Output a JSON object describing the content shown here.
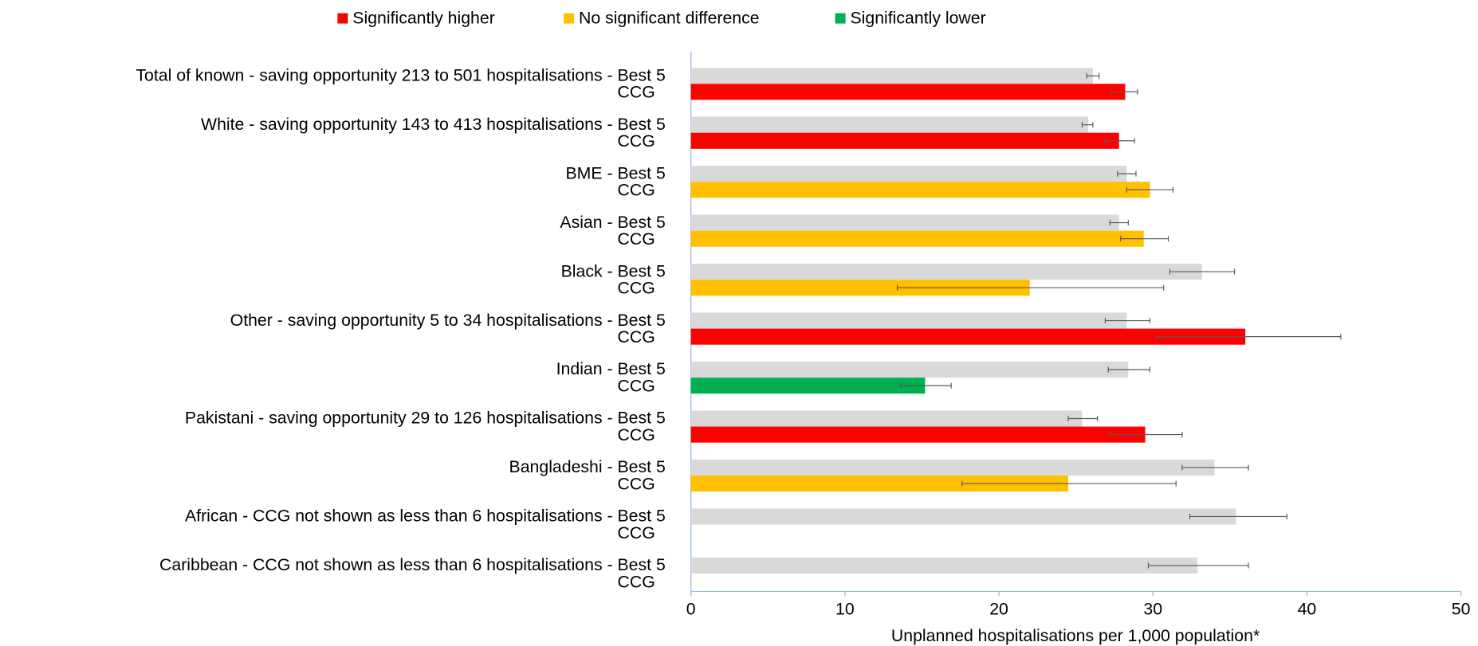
{
  "chart_data": {
    "type": "bar",
    "orientation": "horizontal",
    "legend": [
      {
        "name": "Significantly higher",
        "color": "#ff0000"
      },
      {
        "name": "No significant difference",
        "color": "#ffc000"
      },
      {
        "name": "Significantly lower",
        "color": "#00b050"
      }
    ],
    "categories": [
      "Total of known - saving opportunity 213 to 501 hospitalisations - Best 5",
      "White - saving opportunity 143 to 413 hospitalisations - Best 5",
      "BME - Best 5",
      "Asian - Best 5",
      "Black - Best 5",
      "Other - saving opportunity 5 to 34 hospitalisations - Best 5",
      "Indian - Best 5",
      "Pakistani - saving opportunity 29 to 126 hospitalisations - Best 5",
      "Bangladeshi - Best 5",
      "African - CCG not shown as less than 6 hospitalisations  - Best 5",
      "Caribbean - CCG not shown as less than 6 hospitalisations  - Best 5"
    ],
    "series": [
      {
        "color": "#d9d9d9",
        "values": [
          26.1,
          25.8,
          28.3,
          27.8,
          33.2,
          28.3,
          28.4,
          25.4,
          34.0,
          35.4,
          32.9
        ],
        "ci_low": [
          25.7,
          25.4,
          27.7,
          27.2,
          31.1,
          26.9,
          27.1,
          24.5,
          31.9,
          32.4,
          29.7
        ],
        "ci_high": [
          26.5,
          26.1,
          28.9,
          28.4,
          35.3,
          29.8,
          29.8,
          26.4,
          36.2,
          38.7,
          36.2
        ]
      },
      {
        "name": "CCG",
        "colors": [
          "#ff0000",
          "#ff0000",
          "#ffc000",
          "#ffc000",
          "#ffc000",
          "#ff0000",
          "#00b050",
          "#ff0000",
          "#ffc000",
          null,
          null
        ],
        "values": [
          28.2,
          27.8,
          29.8,
          29.4,
          22.0,
          36.0,
          15.2,
          29.5,
          24.5,
          null,
          null
        ],
        "ci_low": [
          27.3,
          26.9,
          28.3,
          27.9,
          13.4,
          30.2,
          13.6,
          27.2,
          17.6,
          null,
          null
        ],
        "ci_high": [
          29.0,
          28.8,
          31.3,
          31.0,
          30.7,
          42.2,
          16.9,
          31.9,
          31.5,
          null,
          null
        ]
      }
    ],
    "x_label": "Unplanned hospitalisations per 1,000 population*",
    "xlim": [
      0,
      50
    ],
    "xticks": [
      0,
      10,
      20,
      30,
      40,
      50
    ]
  }
}
